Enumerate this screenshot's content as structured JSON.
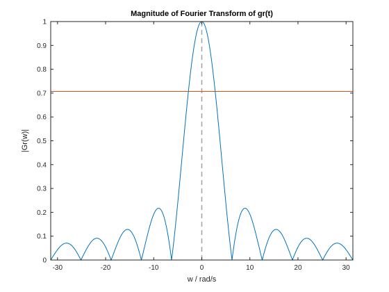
{
  "chart_data": {
    "type": "line",
    "title": "Magnitude of Fourier Transform of gr(t)",
    "xlabel": "w / rad/s",
    "ylabel": "|Gr(w)|",
    "xlim": [
      -31.4159,
      31.4159
    ],
    "ylim": [
      0,
      1
    ],
    "xticks": [
      -30,
      -20,
      -10,
      0,
      10,
      20,
      30
    ],
    "yticks": [
      0,
      0.1,
      0.2,
      0.3,
      0.4,
      0.5,
      0.6,
      0.7,
      0.8,
      0.9,
      1
    ],
    "xtick_labels": [
      "-30",
      "-20",
      "-10",
      "0",
      "10",
      "20",
      "30"
    ],
    "ytick_labels": [
      "0",
      "0.1",
      "0.2",
      "0.3",
      "0.4",
      "0.5",
      "0.6",
      "0.7",
      "0.8",
      "0.9",
      "1"
    ],
    "grid": false,
    "box": true,
    "series": [
      {
        "function": "abs(sinc(w/(2*pi)))",
        "color": "#0072BD",
        "style": "solid",
        "samples": 1200
      },
      {
        "x": [
          -31.4159,
          31.4159
        ],
        "values": [
          0.7071,
          0.7071
        ],
        "color": "#D95319",
        "style": "solid"
      },
      {
        "x": [
          0,
          0
        ],
        "values": [
          0,
          1
        ],
        "color": "#A6A6A6",
        "style": "dashed"
      }
    ]
  }
}
